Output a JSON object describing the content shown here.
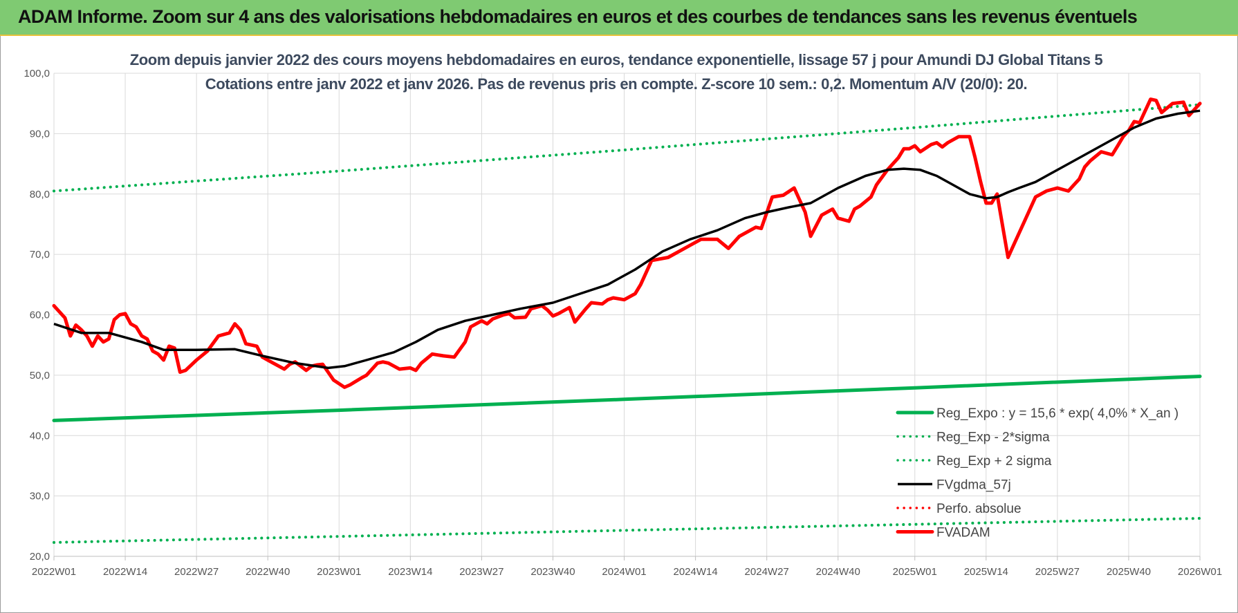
{
  "header": {
    "title": "ADAM Informe. Zoom sur 4 ans des valorisations hebdomadaires en euros et des courbes de tendances sans les revenus éventuels"
  },
  "chart_data": {
    "type": "line",
    "title_line1": "Zoom depuis janvier 2022 des cours moyens hebdomadaires en euros, tendance exponentielle, lissage 57 j pour Amundi DJ Global Titans 5",
    "title_line2": "Cotations entre janv 2022 et janv 2026. Pas de revenus pris en compte. Z-score 10 sem.: 0,2. Momentum A/V (20/0): 20.",
    "xlabel": "",
    "ylabel": "",
    "ylim": [
      20,
      100
    ],
    "xlim": [
      0,
      209
    ],
    "grid": true,
    "legend_position": "bottom-right",
    "y_ticks": [
      "20,0",
      "30,0",
      "40,0",
      "50,0",
      "60,0",
      "70,0",
      "80,0",
      "90,0",
      "100,0"
    ],
    "y_tick_values": [
      20,
      30,
      40,
      50,
      60,
      70,
      80,
      90,
      100
    ],
    "x_ticks": [
      {
        "label": "2022W01",
        "week": 0
      },
      {
        "label": "2022W14",
        "week": 13
      },
      {
        "label": "2022W27",
        "week": 26
      },
      {
        "label": "2022W40",
        "week": 39
      },
      {
        "label": "2023W01",
        "week": 52
      },
      {
        "label": "2023W14",
        "week": 65
      },
      {
        "label": "2023W27",
        "week": 78
      },
      {
        "label": "2023W40",
        "week": 91
      },
      {
        "label": "2024W01",
        "week": 104
      },
      {
        "label": "2024W14",
        "week": 117
      },
      {
        "label": "2024W27",
        "week": 130
      },
      {
        "label": "2024W40",
        "week": 143
      },
      {
        "label": "2025W01",
        "week": 157
      },
      {
        "label": "2025W14",
        "week": 170
      },
      {
        "label": "2025W27",
        "week": 183
      },
      {
        "label": "2025W40",
        "week": 196
      },
      {
        "label": "2026W01",
        "week": 209
      }
    ],
    "series": [
      {
        "name": "Reg_Expo : y = 15,6 * exp( 4,0% *  X_an )",
        "color": "#00b050",
        "style": "solid-thick",
        "x": [
          0,
          52,
          104,
          157,
          209
        ],
        "y": [
          42.5,
          44.2,
          46.0,
          47.9,
          49.8
        ]
      },
      {
        "name": "Reg_Exp - 2*sigma",
        "color": "#00b050",
        "style": "dotted",
        "x": [
          0,
          52,
          104,
          157,
          209
        ],
        "y": [
          22.3,
          23.3,
          24.3,
          25.3,
          26.3
        ]
      },
      {
        "name": "Reg_Exp + 2 sigma",
        "color": "#00b050",
        "style": "dotted",
        "x": [
          0,
          52,
          104,
          157,
          209
        ],
        "y": [
          80.5,
          83.8,
          87.3,
          91.0,
          94.8
        ]
      },
      {
        "name": "FVgdma_57j",
        "color": "#000000",
        "style": "solid",
        "x": [
          0,
          5,
          10,
          16,
          20,
          26,
          33,
          38,
          44,
          50,
          53,
          57,
          62,
          66,
          70,
          75,
          80,
          85,
          91,
          96,
          101,
          106,
          111,
          116,
          121,
          126,
          130,
          134,
          138,
          143,
          148,
          152,
          155,
          158,
          161,
          164,
          167,
          170,
          172,
          174,
          176,
          179,
          182,
          185,
          189,
          193,
          197,
          201,
          205,
          209
        ],
        "y": [
          58.5,
          57.0,
          57.0,
          55.5,
          54.2,
          54.2,
          54.3,
          53.2,
          52.0,
          51.2,
          51.5,
          52.5,
          53.8,
          55.5,
          57.5,
          59.0,
          60.0,
          61.0,
          62.0,
          63.5,
          65.0,
          67.5,
          70.5,
          72.5,
          74.0,
          76.0,
          77.0,
          77.8,
          78.5,
          81.0,
          83.0,
          84.0,
          84.2,
          84.0,
          83.0,
          81.5,
          80.0,
          79.3,
          79.5,
          80.3,
          81.0,
          82.0,
          83.5,
          85.0,
          87.0,
          89.0,
          91.0,
          92.5,
          93.3,
          93.8
        ]
      },
      {
        "name": "Perfo. absolue",
        "color": "#ff0000",
        "style": "dotted",
        "x": [],
        "y": []
      },
      {
        "name": "FVADAM",
        "color": "#ff0000",
        "style": "solid-thick",
        "x": [
          0,
          2,
          3,
          4,
          5,
          6,
          7,
          8,
          9,
          10,
          11,
          12,
          13,
          14,
          15,
          16,
          17,
          18,
          19,
          20,
          21,
          22,
          23,
          24,
          26,
          28,
          30,
          32,
          33,
          34,
          35,
          36,
          37,
          38,
          40,
          42,
          43,
          44,
          46,
          47,
          48,
          49,
          50,
          51,
          53,
          54,
          56,
          57,
          59,
          60,
          61,
          63,
          65,
          66,
          67,
          69,
          71,
          73,
          75,
          76,
          78,
          79,
          80,
          82,
          83,
          84,
          86,
          87,
          89,
          90,
          91,
          92,
          94,
          95,
          97,
          98,
          100,
          101,
          102,
          104,
          106,
          107,
          109,
          112,
          114,
          116,
          118,
          119,
          121,
          123,
          125,
          127,
          128,
          129,
          131,
          133,
          135,
          136,
          137,
          138,
          140,
          142,
          143,
          145,
          146,
          147,
          149,
          150,
          152,
          154,
          155,
          156,
          157,
          158,
          160,
          161,
          162,
          163,
          165,
          167,
          168,
          169,
          170,
          171,
          172,
          174,
          175,
          177,
          179,
          181,
          183,
          185,
          186,
          187,
          188,
          189,
          191,
          193,
          194,
          195,
          196,
          197,
          198,
          200,
          201,
          202,
          204,
          206,
          207,
          209
        ],
        "y": [
          61.5,
          59.5,
          56.5,
          58.3,
          57.5,
          56.5,
          54.8,
          56.5,
          55.5,
          56.0,
          59.2,
          60.0,
          60.2,
          58.5,
          58.0,
          56.5,
          56.0,
          54.0,
          53.5,
          52.5,
          54.8,
          54.5,
          50.5,
          50.8,
          52.5,
          54.0,
          56.5,
          57.0,
          58.5,
          57.5,
          55.2,
          55.0,
          54.8,
          53.0,
          52.0,
          51.0,
          51.8,
          52.2,
          50.8,
          51.5,
          51.7,
          51.8,
          50.5,
          49.2,
          48.0,
          48.4,
          49.5,
          50.0,
          52.0,
          52.2,
          52.0,
          51.0,
          51.2,
          50.8,
          52.0,
          53.5,
          53.2,
          53.0,
          55.5,
          58.0,
          59.0,
          58.5,
          59.3,
          60.0,
          60.2,
          59.5,
          59.6,
          61.0,
          61.5,
          60.8,
          59.8,
          60.2,
          61.2,
          58.8,
          61.0,
          62.0,
          61.8,
          62.5,
          62.8,
          62.5,
          63.5,
          65.0,
          69.0,
          69.5,
          70.5,
          71.5,
          72.5,
          72.5,
          72.5,
          71.0,
          73.0,
          74.0,
          74.5,
          74.3,
          79.5,
          79.8,
          81.0,
          79.0,
          77.0,
          73.0,
          76.5,
          77.5,
          76.0,
          75.5,
          77.5,
          78.0,
          79.5,
          81.5,
          84.0,
          86.0,
          87.5,
          87.5,
          88.0,
          87.0,
          88.2,
          88.5,
          87.8,
          88.5,
          89.5,
          89.5,
          86.0,
          82.0,
          78.5,
          78.5,
          80.0,
          69.5,
          71.5,
          75.5,
          79.5,
          80.5,
          81.0,
          80.5,
          81.5,
          82.5,
          84.5,
          85.5,
          87.0,
          86.5,
          88.0,
          89.5,
          90.5,
          92.0,
          91.8,
          95.7,
          95.5,
          93.5,
          95.0,
          95.2,
          93.0,
          95.0
        ]
      }
    ]
  }
}
